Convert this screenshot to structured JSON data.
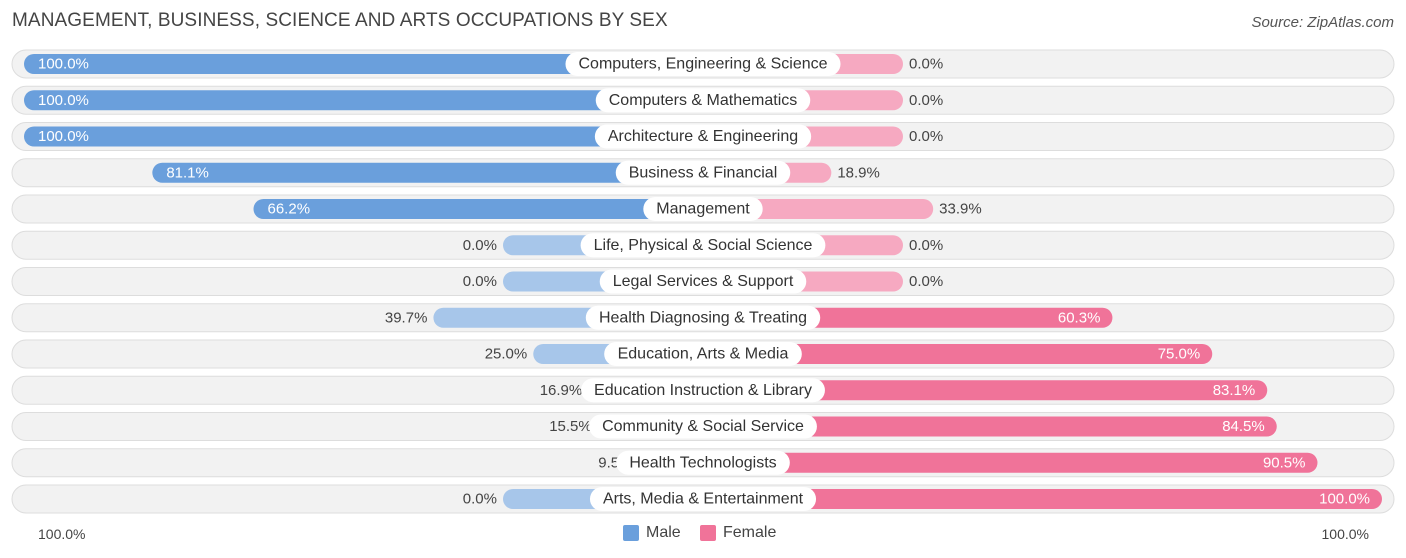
{
  "header": {
    "title": "MANAGEMENT, BUSINESS, SCIENCE AND ARTS OCCUPATIONS BY SEX",
    "source": "Source: ZipAtlas.com"
  },
  "colors": {
    "male_strong": "#6a9fdc",
    "male_light": "#a7c6ea",
    "female_strong": "#f07399",
    "female_light": "#f6a9c1",
    "row_bg": "#f2f2f2",
    "row_border": "#dddddd"
  },
  "legend": {
    "male": "Male",
    "female": "Female",
    "left_axis": "100.0%",
    "right_axis": "100.0%"
  },
  "chart_data": {
    "type": "bar",
    "orientation": "horizontal-diverging",
    "title": "MANAGEMENT, BUSINESS, SCIENCE AND ARTS OCCUPATIONS BY SEX",
    "xlim": [
      -100,
      100
    ],
    "categories": [
      "Computers, Engineering & Science",
      "Computers & Mathematics",
      "Architecture & Engineering",
      "Business & Financial",
      "Management",
      "Life, Physical & Social Science",
      "Legal Services & Support",
      "Health Diagnosing & Treating",
      "Education, Arts & Media",
      "Education Instruction & Library",
      "Community & Social Service",
      "Health Technologists",
      "Arts, Media & Entertainment"
    ],
    "series": [
      {
        "name": "Male",
        "values": [
          100.0,
          100.0,
          100.0,
          81.1,
          66.2,
          0.0,
          0.0,
          39.7,
          25.0,
          16.9,
          15.5,
          9.5,
          0.0
        ],
        "labels": [
          "100.0%",
          "100.0%",
          "100.0%",
          "81.1%",
          "66.2%",
          "0.0%",
          "0.0%",
          "39.7%",
          "25.0%",
          "16.9%",
          "15.5%",
          "9.5%",
          "0.0%"
        ]
      },
      {
        "name": "Female",
        "values": [
          0.0,
          0.0,
          0.0,
          18.9,
          33.9,
          0.0,
          0.0,
          60.3,
          75.0,
          83.1,
          84.5,
          90.5,
          100.0
        ],
        "labels": [
          "0.0%",
          "0.0%",
          "0.0%",
          "18.9%",
          "33.9%",
          "0.0%",
          "0.0%",
          "60.3%",
          "75.0%",
          "83.1%",
          "84.5%",
          "90.5%",
          "100.0%"
        ]
      }
    ],
    "legend_position": "bottom-center"
  }
}
